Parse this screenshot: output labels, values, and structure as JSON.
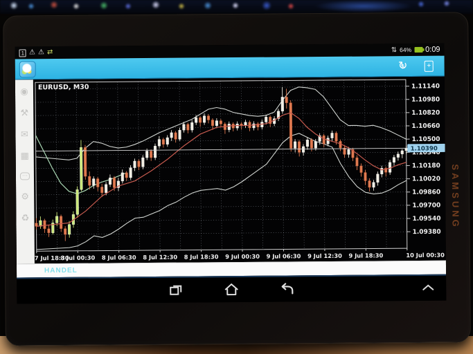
{
  "device": {
    "brand_label": "SAMSUNG"
  },
  "status_bar": {
    "icons": [
      {
        "name": "notification-count",
        "glyph": "1"
      },
      {
        "name": "warning",
        "glyph": "⚠"
      },
      {
        "name": "warning-2",
        "glyph": "⚠"
      },
      {
        "name": "sync-loop",
        "glyph": "⇄"
      }
    ],
    "data_icon": "⇅",
    "battery_percent": "64%",
    "time": "0:09"
  },
  "toolbar": {
    "app_icon_name": "metatrader-app-icon",
    "trade_arrows_glyph": "↻",
    "trade_dollar_glyph": "$",
    "new_order_plus_glyph": "+"
  },
  "sidebar": {
    "items": [
      {
        "name": "account-icon",
        "glyph": "◉"
      },
      {
        "name": "tools-icon",
        "glyph": "⚒"
      },
      {
        "name": "mail-icon",
        "glyph": "✉"
      },
      {
        "name": "calendar-icon",
        "glyph": "▦"
      },
      {
        "name": "chat-icon",
        "glyph": "⋯"
      },
      {
        "name": "settings-icon",
        "glyph": "⚙"
      },
      {
        "name": "journal-icon",
        "glyph": "♻"
      }
    ]
  },
  "bottom_bar": {
    "trade_label": "HANDEL"
  },
  "nav_bar": {
    "buttons": [
      "recents",
      "home",
      "back",
      "hide-bar"
    ]
  },
  "chart_data": {
    "type": "candlestick",
    "title": "EURUSD, M30",
    "symbol": "EURUSD",
    "timeframe": "M30",
    "ylim": [
      1.0918,
      1.1122
    ],
    "y_ticks": [
      1.1114,
      1.1098,
      1.1082,
      1.1066,
      1.105,
      1.1034,
      1.1018,
      1.1002,
      1.0986,
      1.097,
      1.0954,
      1.0938
    ],
    "x_ticks": [
      "7 Jul 18:30",
      "8 Jul 00:30",
      "8 Jul 06:30",
      "8 Jul 12:30",
      "8 Jul 18:30",
      "9 Jul 00:30",
      "9 Jul 06:30",
      "9 Jul 12:30",
      "9 Jul 18:30",
      "10 Jul 00:30"
    ],
    "bars_per_tick": 10,
    "grid_x_step": 5,
    "current_price": 1.1039,
    "current_price_label": "1.10390",
    "left_up_count": 14,
    "colors": {
      "up": "#f1eee3",
      "up_left": "#cbe97a",
      "down": "#e07a50",
      "down_edge": "#b85a38",
      "bb": "#d2d6d2",
      "mid": "#c65a4e",
      "ma": "#abd9b5",
      "grid": "#9aa2ae",
      "border": "#d0d0d0",
      "axis_text": "#f0f0f0",
      "tag_bg": "#9fd2ee",
      "tag_text": "#10384e",
      "bid_line": "#d8d8d8"
    },
    "candles": [
      [
        1.0952,
        1.0958,
        1.0944,
        1.0948
      ],
      [
        1.0948,
        1.096,
        1.0945,
        1.0955
      ],
      [
        1.0955,
        1.0957,
        1.094,
        1.0945
      ],
      [
        1.0945,
        1.095,
        1.0935,
        1.094
      ],
      [
        1.094,
        1.0956,
        1.0938,
        1.0952
      ],
      [
        1.0952,
        1.0965,
        1.0948,
        1.096
      ],
      [
        1.096,
        1.0962,
        1.0941,
        1.0945
      ],
      [
        1.0945,
        1.0948,
        1.093,
        1.0938
      ],
      [
        1.0938,
        1.0954,
        1.0934,
        1.095
      ],
      [
        1.095,
        1.0966,
        1.0946,
        1.0962
      ],
      [
        1.0962,
        1.0996,
        1.0958,
        1.0992
      ],
      [
        1.0992,
        1.1052,
        1.099,
        1.1043
      ],
      [
        1.1043,
        1.1046,
        1.1004,
        1.1008
      ],
      [
        1.1008,
        1.1014,
        1.0992,
        1.0997
      ],
      [
        1.0997,
        1.1008,
        1.0993,
        1.1005
      ],
      [
        1.1005,
        1.1007,
        1.099,
        1.0995
      ],
      [
        1.0995,
        1.0999,
        1.0983,
        1.0988
      ],
      [
        1.0988,
        1.1001,
        1.0985,
        1.0998
      ],
      [
        1.0998,
        1.101,
        1.0995,
        1.1006
      ],
      [
        1.1006,
        1.1008,
        1.099,
        1.0994
      ],
      [
        1.0994,
        1.1006,
        1.099,
        1.1002
      ],
      [
        1.1002,
        1.1016,
        1.0999,
        1.1012
      ],
      [
        1.1012,
        1.1014,
        1.1002,
        1.1006
      ],
      [
        1.1006,
        1.1021,
        1.1003,
        1.1018
      ],
      [
        1.1018,
        1.1029,
        1.1014,
        1.1026
      ],
      [
        1.1026,
        1.1028,
        1.1015,
        1.1019
      ],
      [
        1.1019,
        1.1033,
        1.1016,
        1.103
      ],
      [
        1.103,
        1.1041,
        1.1027,
        1.1038
      ],
      [
        1.1038,
        1.104,
        1.1026,
        1.103
      ],
      [
        1.103,
        1.1047,
        1.1027,
        1.1044
      ],
      [
        1.1044,
        1.1056,
        1.1041,
        1.1052
      ],
      [
        1.1052,
        1.1054,
        1.1042,
        1.1046
      ],
      [
        1.1046,
        1.1057,
        1.1043,
        1.1054
      ],
      [
        1.1054,
        1.1063,
        1.105,
        1.106
      ],
      [
        1.106,
        1.1062,
        1.1048,
        1.1052
      ],
      [
        1.1052,
        1.1066,
        1.105,
        1.1063
      ],
      [
        1.1063,
        1.1073,
        1.106,
        1.107
      ],
      [
        1.107,
        1.1072,
        1.1059,
        1.1063
      ],
      [
        1.1063,
        1.1075,
        1.106,
        1.1072
      ],
      [
        1.1072,
        1.1081,
        1.1069,
        1.1078
      ],
      [
        1.1078,
        1.108,
        1.1067,
        1.1072
      ],
      [
        1.1072,
        1.1083,
        1.1069,
        1.108
      ],
      [
        1.108,
        1.1082,
        1.1071,
        1.1075
      ],
      [
        1.1075,
        1.1077,
        1.1063,
        1.1068
      ],
      [
        1.1068,
        1.1077,
        1.1065,
        1.1074
      ],
      [
        1.1074,
        1.1076,
        1.1066,
        1.107
      ],
      [
        1.107,
        1.1072,
        1.1058,
        1.1063
      ],
      [
        1.1063,
        1.1073,
        1.106,
        1.107
      ],
      [
        1.107,
        1.1072,
        1.1061,
        1.1065
      ],
      [
        1.1065,
        1.1073,
        1.1062,
        1.107
      ],
      [
        1.107,
        1.1072,
        1.1063,
        1.1068
      ],
      [
        1.1068,
        1.1075,
        1.1065,
        1.1072
      ],
      [
        1.1072,
        1.1074,
        1.1061,
        1.1065
      ],
      [
        1.1065,
        1.1073,
        1.1062,
        1.107
      ],
      [
        1.107,
        1.1072,
        1.1062,
        1.1066
      ],
      [
        1.1066,
        1.1075,
        1.1063,
        1.1072
      ],
      [
        1.1072,
        1.1081,
        1.1069,
        1.1078
      ],
      [
        1.1078,
        1.108,
        1.1066,
        1.107
      ],
      [
        1.107,
        1.1079,
        1.1067,
        1.1076
      ],
      [
        1.1076,
        1.1088,
        1.1073,
        1.1085
      ],
      [
        1.1085,
        1.1114,
        1.1082,
        1.1102
      ],
      [
        1.1102,
        1.1112,
        1.1088,
        1.1095
      ],
      [
        1.1095,
        1.1098,
        1.1036,
        1.104
      ],
      [
        1.104,
        1.1051,
        1.1035,
        1.1048
      ],
      [
        1.1048,
        1.105,
        1.103,
        1.1035
      ],
      [
        1.1035,
        1.1045,
        1.1031,
        1.1042
      ],
      [
        1.1042,
        1.1053,
        1.1038,
        1.105
      ],
      [
        1.105,
        1.1052,
        1.1036,
        1.104
      ],
      [
        1.104,
        1.1051,
        1.1037,
        1.1048
      ],
      [
        1.1048,
        1.1058,
        1.1044,
        1.1055
      ],
      [
        1.1055,
        1.1057,
        1.1041,
        1.1045
      ],
      [
        1.1045,
        1.1055,
        1.1042,
        1.1052
      ],
      [
        1.1052,
        1.1061,
        1.1048,
        1.1058
      ],
      [
        1.1058,
        1.106,
        1.1044,
        1.1048
      ],
      [
        1.1048,
        1.105,
        1.1036,
        1.104
      ],
      [
        1.104,
        1.1043,
        1.1028,
        1.1032
      ],
      [
        1.1032,
        1.1041,
        1.1028,
        1.1038
      ],
      [
        1.1038,
        1.104,
        1.1024,
        1.1028
      ],
      [
        1.1028,
        1.1031,
        1.1013,
        1.1018
      ],
      [
        1.1018,
        1.1021,
        1.1005,
        1.101
      ],
      [
        1.101,
        1.1013,
        1.0995,
        1.1
      ],
      [
        1.1,
        1.1003,
        1.0987,
        1.0992
      ],
      [
        1.0992,
        1.1001,
        1.0988,
        1.0998
      ],
      [
        1.0998,
        1.1011,
        1.0994,
        1.1008
      ],
      [
        1.1008,
        1.1018,
        1.1004,
        1.1015
      ],
      [
        1.1015,
        1.1017,
        1.1005,
        1.101
      ],
      [
        1.101,
        1.1025,
        1.1007,
        1.1022
      ],
      [
        1.1022,
        1.1031,
        1.1018,
        1.1028
      ],
      [
        1.1028,
        1.1035,
        1.1024,
        1.1032
      ],
      [
        1.1032,
        1.1038,
        1.1027,
        1.1036
      ],
      [
        1.1036,
        1.1042,
        1.1032,
        1.1039
      ]
    ],
    "overlays": {
      "bb_upper": [
        [
          0,
          1.1032
        ],
        [
          4,
          1.103
        ],
        [
          8,
          1.1028
        ],
        [
          10,
          1.103
        ],
        [
          12,
          1.1042
        ],
        [
          14,
          1.105
        ],
        [
          16,
          1.1048
        ],
        [
          18,
          1.1044
        ],
        [
          20,
          1.1042
        ],
        [
          22,
          1.1043
        ],
        [
          24,
          1.1046
        ],
        [
          26,
          1.105
        ],
        [
          28,
          1.1055
        ],
        [
          30,
          1.106
        ],
        [
          32,
          1.1064
        ],
        [
          34,
          1.1068
        ],
        [
          36,
          1.1072
        ],
        [
          38,
          1.1076
        ],
        [
          40,
          1.1082
        ],
        [
          42,
          1.1088
        ],
        [
          44,
          1.109
        ],
        [
          46,
          1.1088
        ],
        [
          48,
          1.1084
        ],
        [
          50,
          1.1082
        ],
        [
          52,
          1.108
        ],
        [
          54,
          1.1079
        ],
        [
          56,
          1.108
        ],
        [
          58,
          1.1084
        ],
        [
          60,
          1.1098
        ],
        [
          62,
          1.111
        ],
        [
          64,
          1.1114
        ],
        [
          66,
          1.1113
        ],
        [
          68,
          1.1111
        ],
        [
          70,
          1.1102
        ],
        [
          72,
          1.1088
        ],
        [
          74,
          1.1074
        ],
        [
          76,
          1.1067
        ],
        [
          78,
          1.1067
        ],
        [
          80,
          1.1066
        ],
        [
          82,
          1.1067
        ],
        [
          84,
          1.1064
        ],
        [
          86,
          1.106
        ],
        [
          88,
          1.1055
        ],
        [
          90,
          1.105
        ]
      ],
      "bb_middle": [
        [
          0,
          1.0948
        ],
        [
          4,
          1.095
        ],
        [
          8,
          1.0952
        ],
        [
          12,
          1.0966
        ],
        [
          16,
          1.0984
        ],
        [
          20,
          1.0996
        ],
        [
          24,
          1.1002
        ],
        [
          28,
          1.1014
        ],
        [
          32,
          1.1028
        ],
        [
          36,
          1.1044
        ],
        [
          40,
          1.1058
        ],
        [
          44,
          1.1066
        ],
        [
          48,
          1.1068
        ],
        [
          52,
          1.1068
        ],
        [
          56,
          1.107
        ],
        [
          58,
          1.1074
        ],
        [
          60,
          1.108
        ],
        [
          62,
          1.1083
        ],
        [
          64,
          1.1076
        ],
        [
          66,
          1.1065
        ],
        [
          68,
          1.1057
        ],
        [
          70,
          1.1051
        ],
        [
          72,
          1.1048
        ],
        [
          74,
          1.1045
        ],
        [
          76,
          1.104
        ],
        [
          78,
          1.1033
        ],
        [
          80,
          1.1025
        ],
        [
          82,
          1.1018
        ],
        [
          84,
          1.1013
        ],
        [
          86,
          1.1015
        ],
        [
          88,
          1.1019
        ],
        [
          90,
          1.1022
        ]
      ],
      "bb_lower": [
        [
          0,
          1.092
        ],
        [
          4,
          1.0921
        ],
        [
          8,
          1.0922
        ],
        [
          10,
          1.0924
        ],
        [
          12,
          1.0929
        ],
        [
          14,
          1.0936
        ],
        [
          16,
          1.0934
        ],
        [
          18,
          1.0938
        ],
        [
          20,
          1.0944
        ],
        [
          22,
          1.0951
        ],
        [
          24,
          1.0957
        ],
        [
          26,
          1.0958
        ],
        [
          28,
          1.0962
        ],
        [
          30,
          1.0966
        ],
        [
          32,
          1.0972
        ],
        [
          34,
          1.0976
        ],
        [
          36,
          1.0982
        ],
        [
          38,
          1.0987
        ],
        [
          40,
          1.099
        ],
        [
          42,
          1.0991
        ],
        [
          44,
          1.0992
        ],
        [
          46,
          1.099
        ],
        [
          48,
          1.0994
        ],
        [
          50,
          1.1
        ],
        [
          52,
          1.1007
        ],
        [
          54,
          1.1014
        ],
        [
          56,
          1.1021
        ],
        [
          58,
          1.1034
        ],
        [
          60,
          1.1047
        ],
        [
          62,
          1.1055
        ],
        [
          64,
          1.1058
        ],
        [
          66,
          1.1053
        ],
        [
          68,
          1.1048
        ],
        [
          70,
          1.1045
        ],
        [
          72,
          1.1041
        ],
        [
          74,
          1.1021
        ],
        [
          76,
          1.1005
        ],
        [
          78,
          1.0993
        ],
        [
          80,
          1.0986
        ],
        [
          82,
          1.0984
        ],
        [
          84,
          1.0985
        ],
        [
          86,
          1.0989
        ],
        [
          88,
          1.0995
        ],
        [
          90,
          1.1
        ]
      ],
      "ma_slow": [
        [
          0,
          1.1058
        ],
        [
          2,
          1.1038
        ],
        [
          4,
          1.1018
        ],
        [
          6,
          1.1
        ],
        [
          8,
          1.099
        ],
        [
          10,
          1.0987
        ],
        [
          12,
          1.0991
        ],
        [
          14,
          1.0997
        ],
        [
          16,
          1.1001
        ],
        [
          18,
          1.1004
        ],
        [
          20,
          1.1008
        ],
        [
          22,
          1.1012
        ]
      ]
    }
  }
}
